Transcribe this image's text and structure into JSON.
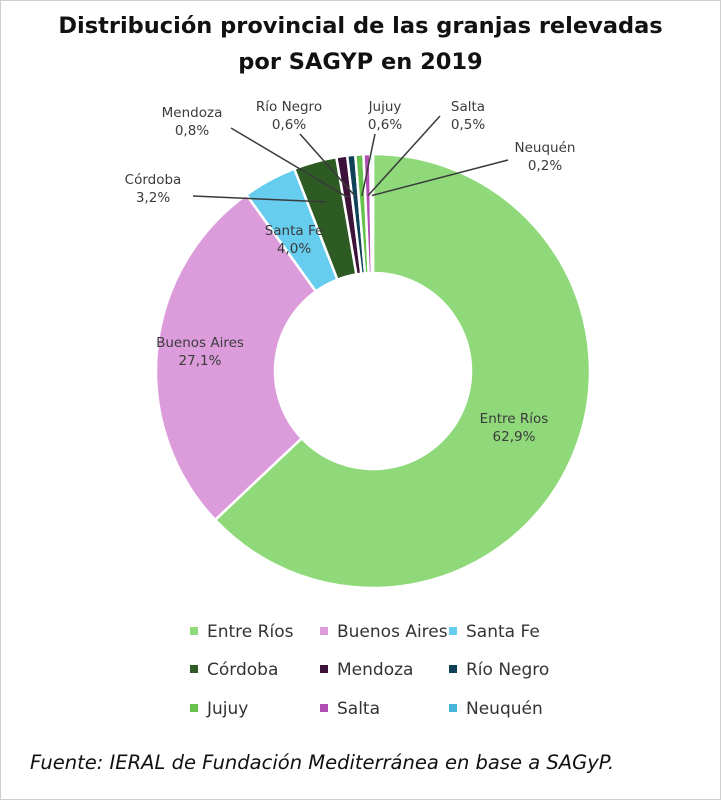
{
  "title": {
    "line1": "Distribución provincial de las granjas relevadas",
    "line2": "por SAGYP en 2019"
  },
  "chart_data": {
    "type": "pie",
    "variant": "donut",
    "title": "Distribución provincial de las granjas relevadas por SAGYP en 2019",
    "categories": [
      "Entre Ríos",
      "Buenos Aires",
      "Santa Fe",
      "Córdoba",
      "Mendoza",
      "Río Negro",
      "Jujuy",
      "Salta",
      "Neuquén"
    ],
    "values": [
      62.9,
      27.1,
      4.0,
      3.2,
      0.8,
      0.6,
      0.6,
      0.5,
      0.2
    ],
    "value_labels": [
      "62,9%",
      "27,1%",
      "4,0%",
      "3,2%",
      "0,8%",
      "0,6%",
      "0,6%",
      "0,5%",
      "0,2%"
    ],
    "colors": [
      "#8fd97a",
      "#dc9cdc",
      "#66cdee",
      "#2e5a24",
      "#3d1238",
      "#0f4258",
      "#66c24c",
      "#b24eb4",
      "#48b4dc"
    ],
    "legend_position": "bottom"
  },
  "source": "Fuente: IERAL de Fundación Mediterránea en base a SAGyP."
}
